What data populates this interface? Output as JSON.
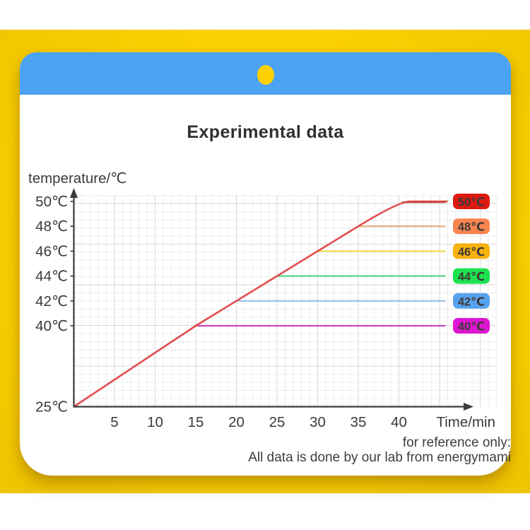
{
  "header": {
    "title": "Experimental data"
  },
  "footer": {
    "line1": "for reference only:",
    "line2": "All data is done by our lab from energymami"
  },
  "colors": {
    "band_yellow": "#fbd103",
    "header_blue": "#4ba3f2",
    "dot_yellow": "#ffd104",
    "axis": "#3a3a3a",
    "title_text": "#332f2e"
  },
  "chart_data": {
    "type": "line",
    "title": "Experimental data",
    "grid": true,
    "x_axis": {
      "label": "Time/min",
      "ticks": [
        5,
        10,
        15,
        20,
        25,
        30,
        35,
        40
      ],
      "range": [
        0,
        46
      ]
    },
    "y_axis": {
      "label": "temperature/℃",
      "ticks": [
        {
          "label": "50℃",
          "temp": 50
        },
        {
          "label": "48℃",
          "temp": 48
        },
        {
          "label": "46℃",
          "temp": 46
        },
        {
          "label": "44℃",
          "temp": 44
        },
        {
          "label": "42℃",
          "temp": 42
        },
        {
          "label": "40℃",
          "temp": 40
        },
        {
          "label": "25℃",
          "temp": 25
        }
      ]
    },
    "series": [
      {
        "name": "heating curve",
        "color": "#e24c4c",
        "points": [
          [
            0,
            25
          ],
          [
            15,
            40
          ],
          [
            20,
            42
          ],
          [
            25,
            44
          ],
          [
            30,
            46
          ],
          [
            35,
            48
          ],
          [
            40,
            50
          ],
          [
            46,
            50
          ]
        ]
      }
    ],
    "reference_lines": [
      {
        "label": "50℃",
        "temp": 50,
        "start_min": 40,
        "end_min": 46,
        "line_color": "#bf4a45",
        "badge_color": "#dd1a10"
      },
      {
        "label": "48℃",
        "temp": 48,
        "start_min": 35,
        "end_min": 46,
        "line_color": "#e5a87a",
        "badge_color": "#fa8450"
      },
      {
        "label": "46℃",
        "temp": 46,
        "start_min": 30,
        "end_min": 46,
        "line_color": "#f2de52",
        "badge_color": "#f7b20e"
      },
      {
        "label": "44℃",
        "temp": 44,
        "start_min": 25,
        "end_min": 46,
        "line_color": "#5bd78a",
        "badge_color": "#1ce24f"
      },
      {
        "label": "42℃",
        "temp": 42,
        "start_min": 20,
        "end_min": 46,
        "line_color": "#9bbfe8",
        "badge_color": "#57a2f0"
      },
      {
        "label": "40℃",
        "temp": 40,
        "start_min": 15,
        "end_min": 46,
        "line_color": "#c945c2",
        "badge_color": "#de17d2"
      }
    ]
  }
}
